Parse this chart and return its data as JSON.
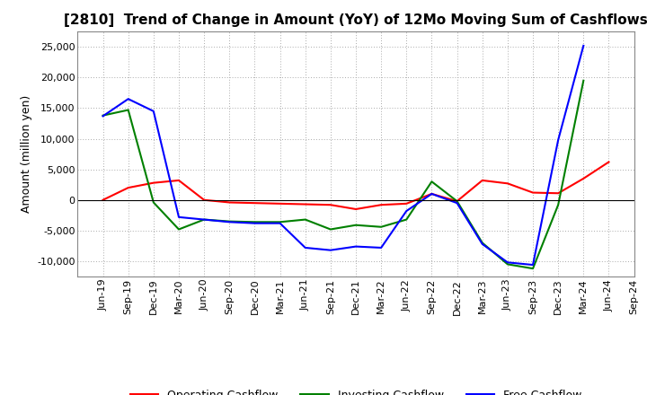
{
  "title": "[2810]  Trend of Change in Amount (YoY) of 12Mo Moving Sum of Cashflows",
  "ylabel": "Amount (million yen)",
  "xlabel": "",
  "background_color": "#ffffff",
  "grid_color": "#aaaaaa",
  "ylim": [
    -12500,
    27500
  ],
  "yticks": [
    -10000,
    -5000,
    0,
    5000,
    10000,
    15000,
    20000,
    25000
  ],
  "x_labels": [
    "Jun-19",
    "Sep-19",
    "Dec-19",
    "Mar-20",
    "Jun-20",
    "Sep-20",
    "Dec-20",
    "Mar-21",
    "Jun-21",
    "Sep-21",
    "Dec-21",
    "Mar-22",
    "Jun-22",
    "Sep-22",
    "Dec-22",
    "Mar-23",
    "Jun-23",
    "Sep-23",
    "Dec-23",
    "Mar-24",
    "Jun-24",
    "Sep-24"
  ],
  "operating_cashflow": [
    0,
    2000,
    2800,
    3200,
    0,
    -400,
    -500,
    -600,
    -700,
    -800,
    -1500,
    -800,
    -600,
    1000,
    -200,
    3200,
    2700,
    1200,
    1100,
    3500,
    6200,
    null
  ],
  "investing_cashflow": [
    13800,
    14700,
    -400,
    -4800,
    -3200,
    -3500,
    -3600,
    -3600,
    -3200,
    -4800,
    -4100,
    -4400,
    -3200,
    3000,
    -200,
    -7000,
    -10500,
    -11200,
    -800,
    19500,
    null,
    null
  ],
  "free_cashflow": [
    13700,
    16500,
    14500,
    -2800,
    -3200,
    -3600,
    -3800,
    -3800,
    -7800,
    -8200,
    -7600,
    -7800,
    -1800,
    1000,
    -500,
    -7200,
    -10200,
    -10600,
    9800,
    25200,
    null,
    null
  ],
  "op_color": "#ff0000",
  "inv_color": "#008000",
  "free_color": "#0000ff",
  "title_fontsize": 11,
  "label_fontsize": 9,
  "tick_fontsize": 8
}
